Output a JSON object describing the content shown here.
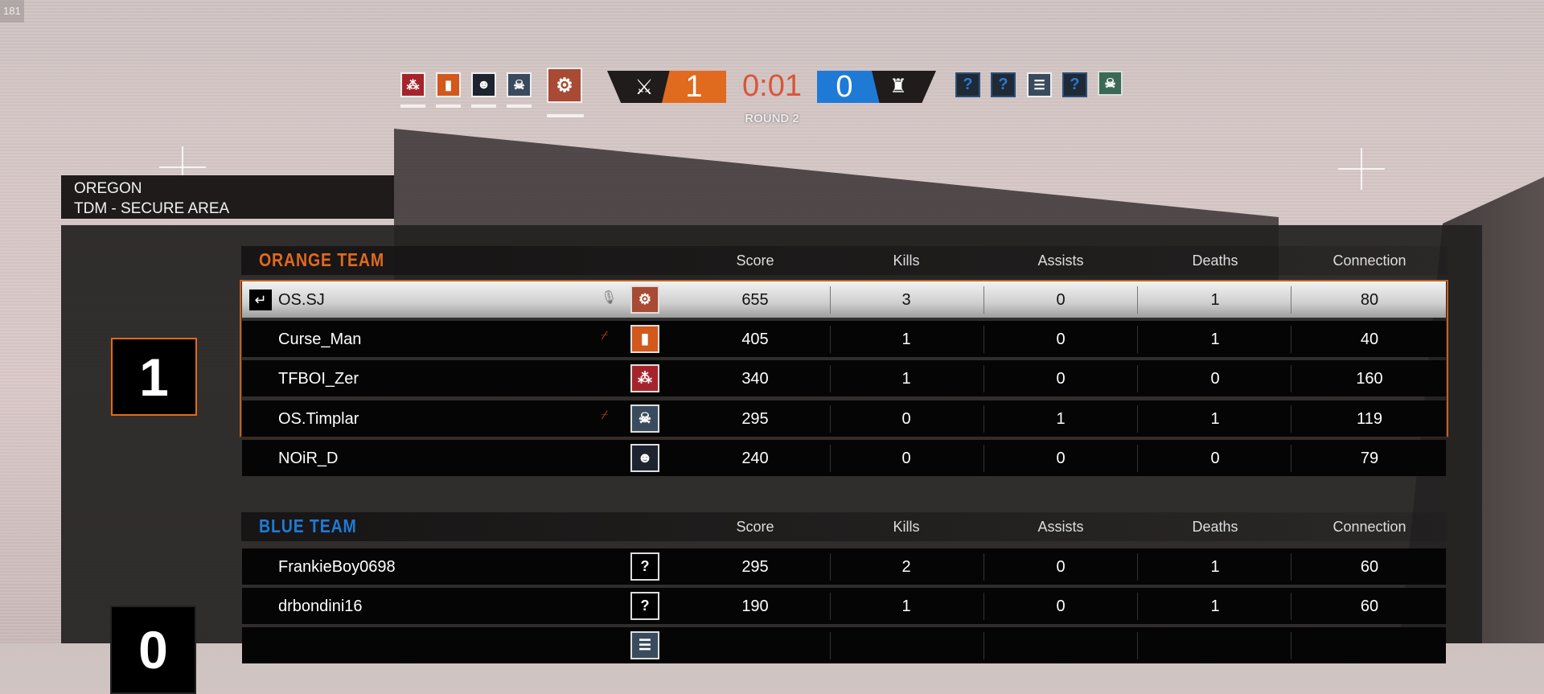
{
  "fps_counter": "181",
  "hud": {
    "orange_score": "1",
    "blue_score": "0",
    "timer": "0:01",
    "round": "ROUND 2",
    "orange_icon": "crossed-swords-icon",
    "blue_icon": "tower-icon",
    "orange_operators": [
      {
        "icon": "cluster-charge-icon",
        "color": "#a5242b"
      },
      {
        "icon": "shield-icon",
        "color": "#d2581c"
      },
      {
        "icon": "beret-sunglasses-icon",
        "color": "#1e2330"
      },
      {
        "icon": "skull-signal-icon",
        "color": "#3b4b5e"
      },
      {
        "icon": "gears-icon",
        "color": "#a84a34"
      }
    ],
    "blue_operators": [
      {
        "icon": "question-icon",
        "label": "?"
      },
      {
        "icon": "question-icon",
        "label": "?"
      },
      {
        "icon": "armor-vest-icon"
      },
      {
        "icon": "question-icon",
        "label": "?"
      },
      {
        "icon": "monster-face-icon"
      }
    ]
  },
  "map": {
    "name": "OREGON",
    "mode": "TDM - SECURE AREA"
  },
  "columns": [
    "Score",
    "Kills",
    "Assists",
    "Deaths",
    "Connection"
  ],
  "colors": {
    "orange": "#e06a1e",
    "blue": "#1f7ad6",
    "timer": "#d9553a"
  },
  "orange_team": {
    "name": "ORANGE TEAM",
    "rounds": "1",
    "players": [
      {
        "name": "OS.SJ",
        "self": true,
        "mic": "mic-icon",
        "op": "gears-icon",
        "op_color": "#a84a34",
        "op_glyph": "⚙",
        "score": "655",
        "kills": "3",
        "assists": "0",
        "deaths": "1",
        "connection": "80"
      },
      {
        "name": "Curse_Man",
        "mic": "muted-mic-icon",
        "op": "shield-icon",
        "op_color": "#d2581c",
        "op_glyph": "▮",
        "score": "405",
        "kills": "1",
        "assists": "0",
        "deaths": "1",
        "connection": "40"
      },
      {
        "name": "TFBOI_Zer",
        "op": "cluster-charge-icon",
        "op_color": "#a5242b",
        "op_glyph": "⁂",
        "score": "340",
        "kills": "1",
        "assists": "0",
        "deaths": "0",
        "connection": "160"
      },
      {
        "name": "OS.Timplar",
        "mic": "muted-mic-icon",
        "op": "skull-signal-icon",
        "op_color": "#3b4b5e",
        "op_glyph": "☠",
        "score": "295",
        "kills": "0",
        "assists": "1",
        "deaths": "1",
        "connection": "119"
      },
      {
        "name": "NOiR_D",
        "op": "beret-sunglasses-icon",
        "op_color": "#1e2330",
        "op_glyph": "☻",
        "score": "240",
        "kills": "0",
        "assists": "0",
        "deaths": "0",
        "connection": "79"
      }
    ]
  },
  "blue_team": {
    "name": "BLUE TEAM",
    "rounds": "0",
    "players": [
      {
        "name": "FrankieBoy0698",
        "op": "question-icon",
        "op_glyph": "?",
        "score": "295",
        "kills": "2",
        "assists": "0",
        "deaths": "1",
        "connection": "60"
      },
      {
        "name": "drbondini16",
        "op": "question-icon",
        "op_glyph": "?",
        "score": "190",
        "kills": "1",
        "assists": "0",
        "deaths": "1",
        "connection": "60"
      },
      {
        "op": "armor-vest-icon"
      }
    ]
  }
}
